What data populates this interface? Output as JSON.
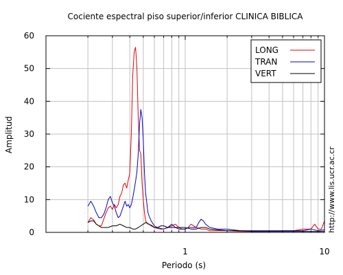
{
  "chart_data": {
    "type": "line",
    "title": "Cociente espectral piso superior/inferior  CLINICA BIBLICA",
    "xlabel": "Periodo (s)",
    "ylabel": "Amplitud",
    "x_scale": "log",
    "xlim": [
      0.1,
      10
    ],
    "ylim": [
      0,
      60
    ],
    "x_ticks": [
      1,
      10
    ],
    "x_tick_labels": [
      "1",
      "10"
    ],
    "y_ticks": [
      0,
      10,
      20,
      30,
      40,
      50,
      60
    ],
    "y_tick_labels": [
      "0",
      "10",
      "20",
      "30",
      "40",
      "50",
      "60"
    ],
    "grid": true,
    "legend_position": "top-right",
    "side_text": "http://www.lis.ucr.ac.cr",
    "series": [
      {
        "name": "LONG",
        "color": "#e00000",
        "x": [
          0.2,
          0.21,
          0.22,
          0.23,
          0.24,
          0.25,
          0.26,
          0.27,
          0.28,
          0.29,
          0.3,
          0.31,
          0.32,
          0.33,
          0.34,
          0.35,
          0.36,
          0.37,
          0.38,
          0.39,
          0.4,
          0.41,
          0.42,
          0.43,
          0.44,
          0.45,
          0.46,
          0.47,
          0.48,
          0.49,
          0.5,
          0.51,
          0.52,
          0.53,
          0.54,
          0.55,
          0.57,
          0.6,
          0.63,
          0.67,
          0.7,
          0.75,
          0.8,
          0.85,
          0.9,
          0.95,
          1.0,
          1.05,
          1.1,
          1.2,
          1.3,
          1.4,
          1.5,
          1.7,
          2.0,
          2.5,
          3.0,
          4.0,
          5.0,
          6.0,
          7.0,
          8.0,
          8.5,
          9.0,
          9.5,
          10.0
        ],
        "y": [
          3.0,
          4.5,
          3.8,
          2.5,
          2.0,
          2.0,
          4.0,
          6.0,
          7.5,
          8.0,
          7.0,
          8.5,
          7.5,
          8.5,
          11.0,
          12.0,
          14.5,
          15.0,
          13.5,
          16.0,
          18.0,
          30.0,
          48.0,
          55.0,
          56.5,
          50.0,
          35.0,
          25.0,
          24.0,
          15.0,
          10.0,
          6.0,
          3.5,
          3.0,
          2.5,
          2.5,
          2.0,
          1.5,
          1.2,
          1.0,
          1.0,
          1.5,
          2.0,
          2.5,
          1.5,
          1.0,
          1.0,
          1.5,
          2.5,
          1.5,
          1.0,
          1.0,
          0.5,
          0.5,
          0.5,
          0.3,
          0.3,
          0.3,
          0.5,
          0.5,
          1.0,
          1.0,
          2.5,
          1.0,
          1.0,
          3.5
        ]
      },
      {
        "name": "TRAN",
        "color": "#0000cc",
        "x": [
          0.2,
          0.21,
          0.22,
          0.23,
          0.24,
          0.25,
          0.26,
          0.27,
          0.28,
          0.29,
          0.3,
          0.31,
          0.32,
          0.33,
          0.34,
          0.35,
          0.36,
          0.37,
          0.38,
          0.39,
          0.4,
          0.41,
          0.42,
          0.43,
          0.44,
          0.45,
          0.46,
          0.47,
          0.48,
          0.49,
          0.5,
          0.51,
          0.52,
          0.53,
          0.54,
          0.55,
          0.57,
          0.6,
          0.63,
          0.67,
          0.7,
          0.75,
          0.8,
          0.85,
          0.9,
          0.95,
          1.0,
          1.05,
          1.1,
          1.2,
          1.25,
          1.3,
          1.35,
          1.4,
          1.5,
          1.7,
          2.0,
          2.5,
          3.0,
          4.0,
          5.0,
          6.0,
          7.0,
          8.0,
          9.0,
          10.0
        ],
        "y": [
          8.0,
          9.5,
          8.0,
          6.0,
          4.5,
          4.5,
          5.5,
          7.5,
          10.0,
          11.0,
          9.0,
          8.0,
          6.0,
          4.5,
          5.0,
          6.5,
          8.0,
          9.5,
          8.0,
          8.5,
          7.5,
          8.5,
          10.5,
          13.0,
          15.5,
          18.5,
          24.0,
          33.0,
          37.5,
          35.0,
          28.0,
          18.0,
          12.0,
          9.0,
          6.0,
          5.0,
          3.5,
          2.0,
          1.5,
          1.2,
          1.0,
          1.5,
          2.5,
          1.5,
          1.0,
          1.0,
          1.0,
          1.5,
          1.5,
          1.5,
          3.0,
          4.0,
          3.5,
          2.5,
          1.5,
          1.0,
          1.0,
          0.5,
          0.5,
          0.5,
          0.5,
          0.5,
          0.5,
          1.0,
          0.5,
          0.8
        ]
      },
      {
        "name": "VERT",
        "color": "#000000",
        "x": [
          0.2,
          0.21,
          0.22,
          0.23,
          0.24,
          0.25,
          0.26,
          0.27,
          0.28,
          0.3,
          0.32,
          0.34,
          0.36,
          0.38,
          0.4,
          0.42,
          0.44,
          0.46,
          0.48,
          0.5,
          0.52,
          0.55,
          0.58,
          0.6,
          0.63,
          0.67,
          0.7,
          0.75,
          0.8,
          0.85,
          0.9,
          1.0,
          1.1,
          1.2,
          1.3,
          1.4,
          1.5,
          1.7,
          2.0,
          2.5,
          3.0,
          4.0,
          5.0,
          6.0,
          7.0,
          8.0,
          9.0,
          10.0
        ],
        "y": [
          3.0,
          3.5,
          3.5,
          2.5,
          2.0,
          1.5,
          1.5,
          1.5,
          1.5,
          2.0,
          2.0,
          2.5,
          2.0,
          1.5,
          1.5,
          1.0,
          1.0,
          1.5,
          2.0,
          2.5,
          3.0,
          2.5,
          2.0,
          1.5,
          1.5,
          2.0,
          2.0,
          1.5,
          1.5,
          1.5,
          1.5,
          1.5,
          1.0,
          1.0,
          1.5,
          1.5,
          1.0,
          0.8,
          0.5,
          0.5,
          0.3,
          0.3,
          0.3,
          0.3,
          0.3,
          0.3,
          0.3,
          0.3
        ]
      }
    ]
  }
}
